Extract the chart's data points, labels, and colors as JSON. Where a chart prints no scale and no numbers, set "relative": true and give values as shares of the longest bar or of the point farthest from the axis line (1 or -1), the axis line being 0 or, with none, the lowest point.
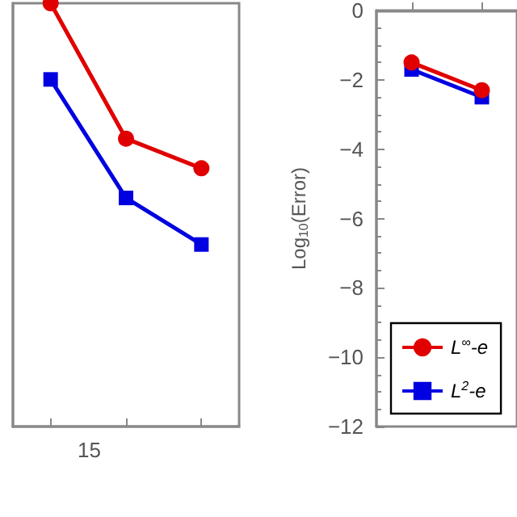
{
  "chart_data": [
    {
      "type": "line",
      "relative": true,
      "categories": [
        null,
        null,
        null
      ],
      "tick_labels": false,
      "grid": false,
      "legend": false,
      "annotations": [
        "15"
      ],
      "series": [
        {
          "color": "#e00000",
          "marker": "circle",
          "values": [
            1,
            0.68,
            0.61
          ]
        },
        {
          "color": "#0000e0",
          "marker": "square",
          "values": [
            0.82,
            0.54,
            0.43
          ]
        }
      ]
    },
    {
      "type": "line",
      "categories": [
        null,
        null
      ],
      "ylim": [
        -12,
        0
      ],
      "yticks": [
        -12,
        -10,
        -8,
        -6,
        -4,
        -2,
        0
      ],
      "tick_labels": "y",
      "ylabel": "Log$_{10}$(Error)",
      "grid": false,
      "legend": "bottom left",
      "series": [
        {
          "name": "L$^{∞}$-e",
          "color": "#e00000",
          "marker": "circle",
          "values": [
            -1.5,
            -2.3
          ]
        },
        {
          "name": "L$^{2}$-e",
          "color": "#0000e0",
          "marker": "square",
          "values": [
            -1.7,
            -2.5
          ]
        }
      ]
    }
  ]
}
